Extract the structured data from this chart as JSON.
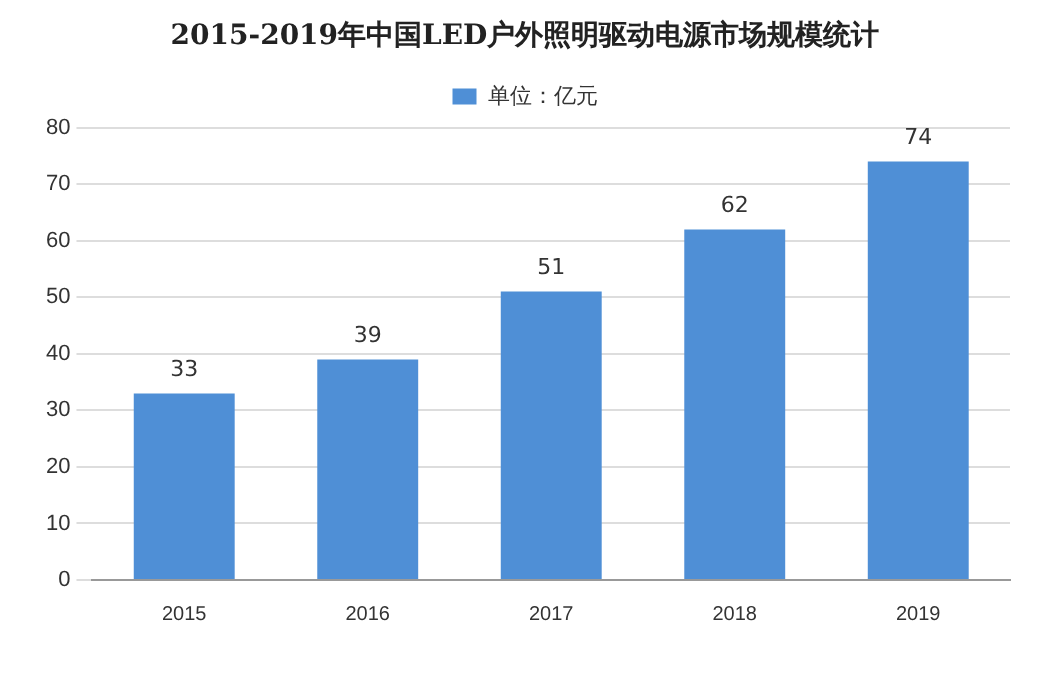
{
  "chart_data": {
    "type": "bar",
    "title": "2015-2019年中国LED户外照明驱动电源市场规模统计",
    "categories": [
      "2015",
      "2016",
      "2017",
      "2018",
      "2019"
    ],
    "series": [
      {
        "name": "单位：亿元",
        "color": "#4f8fd6",
        "values": [
          33,
          39,
          51,
          62,
          74
        ]
      }
    ],
    "ylim": [
      0,
      80
    ],
    "yticks": [
      0,
      10,
      20,
      30,
      40,
      50,
      60,
      70,
      80
    ],
    "grid": "y",
    "legend": "top",
    "data_labels": true
  }
}
